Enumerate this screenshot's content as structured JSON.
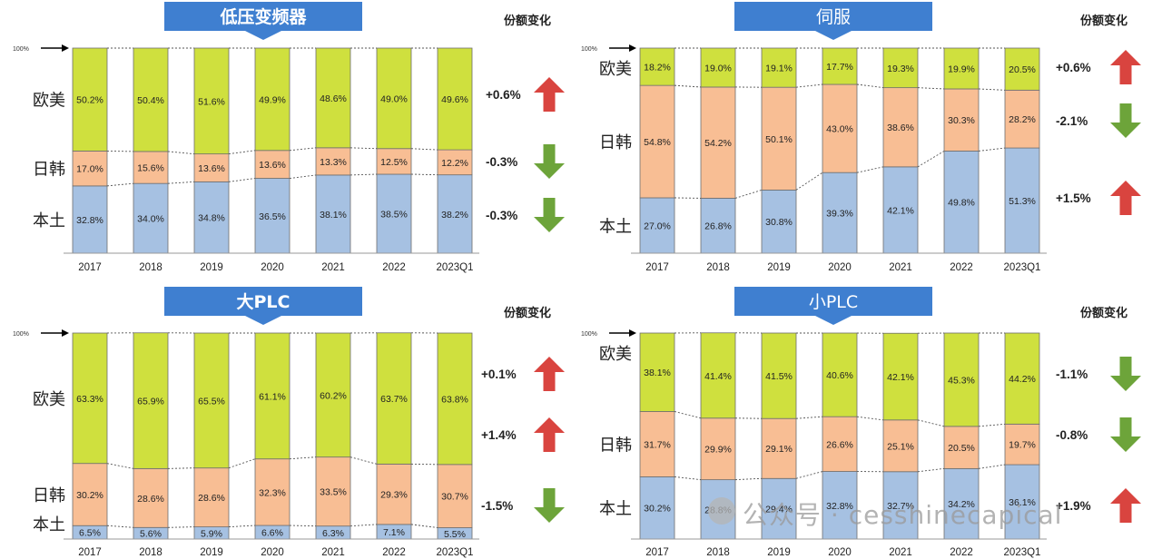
{
  "chart_data": [
    {
      "type": "bar",
      "title": "低压变频器",
      "categories": [
        "2017",
        "2018",
        "2019",
        "2020",
        "2021",
        "2022",
        "2023Q1"
      ],
      "series": [
        {
          "name": "本土",
          "values": [
            32.8,
            34.0,
            34.8,
            36.5,
            38.1,
            38.5,
            38.2
          ],
          "labels": [
            "32.8%",
            "34.0%",
            "34.8%",
            "36.5%",
            "38.1%",
            "38.5%",
            "38.2%"
          ]
        },
        {
          "name": "日韩",
          "values": [
            17.0,
            15.6,
            13.6,
            13.6,
            13.3,
            12.5,
            12.2
          ],
          "labels": [
            "17.0%",
            "15.6%",
            "13.6%",
            "13.6%",
            "13.3%",
            "12.5%",
            "12.2%"
          ]
        },
        {
          "name": "欧美",
          "values": [
            50.2,
            50.4,
            51.6,
            49.9,
            48.6,
            49.0,
            49.6
          ],
          "labels": [
            "50.2%",
            "50.4%",
            "51.6%",
            "49.9%",
            "48.6%",
            "49.0%",
            "49.6%"
          ]
        }
      ],
      "pointer_label": "100%",
      "share_change_header": "份额变化",
      "changes": [
        {
          "series": "欧美",
          "text": "+0.6%",
          "direction": "up"
        },
        {
          "series": "日韩",
          "text": "-0.3%",
          "direction": "down"
        },
        {
          "series": "本土",
          "text": "-0.3%",
          "direction": "down"
        }
      ],
      "stacked": true,
      "ylim": [
        0,
        100
      ]
    },
    {
      "type": "bar",
      "title": "伺服",
      "categories": [
        "2017",
        "2018",
        "2019",
        "2020",
        "2021",
        "2022",
        "2023Q1"
      ],
      "series": [
        {
          "name": "本土",
          "values": [
            27.0,
            26.8,
            30.8,
            39.3,
            42.1,
            49.8,
            51.3
          ],
          "labels": [
            "27.0%",
            "26.8%",
            "30.8%",
            "39.3%",
            "42.1%",
            "49.8%",
            "51.3%"
          ]
        },
        {
          "name": "日韩",
          "values": [
            54.8,
            54.2,
            50.1,
            43.0,
            38.6,
            30.3,
            28.2
          ],
          "labels": [
            "54.8%",
            "54.2%",
            "50.1%",
            "43.0%",
            "38.6%",
            "30.3%",
            "28.2%"
          ]
        },
        {
          "name": "欧美",
          "values": [
            18.2,
            19.0,
            19.1,
            17.7,
            19.3,
            19.9,
            20.5
          ],
          "labels": [
            "18.2%",
            "19.0%",
            "19.1%",
            "17.7%",
            "19.3%",
            "19.9%",
            "20.5%"
          ]
        }
      ],
      "pointer_label": "100%",
      "share_change_header": "份额变化",
      "changes": [
        {
          "series": "欧美",
          "text": "+0.6%",
          "direction": "up"
        },
        {
          "series": "日韩",
          "text": "-2.1%",
          "direction": "down"
        },
        {
          "series": "本土",
          "text": "+1.5%",
          "direction": "up"
        }
      ],
      "stacked": true,
      "ylim": [
        0,
        100
      ]
    },
    {
      "type": "bar",
      "title": "大PLC",
      "categories": [
        "2017",
        "2018",
        "2019",
        "2020",
        "2021",
        "2022",
        "2023Q1"
      ],
      "series": [
        {
          "name": "本土",
          "values": [
            6.5,
            5.6,
            5.9,
            6.6,
            6.3,
            7.1,
            5.5
          ],
          "labels": [
            "6.5%",
            "5.6%",
            "5.9%",
            "6.6%",
            "6.3%",
            "7.1%",
            "5.5%"
          ]
        },
        {
          "name": "日韩",
          "values": [
            30.2,
            28.6,
            28.6,
            32.3,
            33.5,
            29.3,
            30.7
          ],
          "labels": [
            "30.2%",
            "28.6%",
            "28.6%",
            "32.3%",
            "33.5%",
            "29.3%",
            "30.7%"
          ]
        },
        {
          "name": "欧美",
          "values": [
            63.3,
            65.9,
            65.5,
            61.1,
            60.2,
            63.7,
            63.8
          ],
          "labels": [
            "63.3%",
            "65.9%",
            "65.5%",
            "61.1%",
            "60.2%",
            "63.7%",
            "63.8%"
          ]
        }
      ],
      "pointer_label": "100%",
      "share_change_header": "份额变化",
      "changes": [
        {
          "series": "欧美",
          "text": "+0.1%",
          "direction": "up"
        },
        {
          "series": "日韩",
          "text": "+1.4%",
          "direction": "up"
        },
        {
          "series": "本土",
          "text": "-1.5%",
          "direction": "down"
        }
      ],
      "stacked": true,
      "ylim": [
        0,
        100
      ]
    },
    {
      "type": "bar",
      "title": "小PLC",
      "categories": [
        "2017",
        "2018",
        "2019",
        "2020",
        "2021",
        "2022",
        "2023Q1"
      ],
      "series": [
        {
          "name": "本土",
          "values": [
            30.2,
            28.8,
            29.4,
            32.8,
            32.7,
            34.2,
            36.1
          ],
          "labels": [
            "30.2%",
            "28.8%",
            "29.4%",
            "32.8%",
            "32.7%",
            "34.2%",
            "36.1%"
          ]
        },
        {
          "name": "日韩",
          "values": [
            31.7,
            29.9,
            29.1,
            26.6,
            25.1,
            20.5,
            19.7
          ],
          "labels": [
            "31.7%",
            "29.9%",
            "29.1%",
            "26.6%",
            "25.1%",
            "20.5%",
            "19.7%"
          ]
        },
        {
          "name": "欧美",
          "values": [
            38.1,
            41.4,
            41.5,
            40.6,
            42.1,
            45.3,
            44.2
          ],
          "labels": [
            "38.1%",
            "41.4%",
            "41.5%",
            "40.6%",
            "42.1%",
            "45.3%",
            "44.2%"
          ]
        }
      ],
      "pointer_label": "100%",
      "share_change_header": "份额变化",
      "changes": [
        {
          "series": "欧美",
          "text": "-1.1%",
          "direction": "down"
        },
        {
          "series": "日韩",
          "text": "-0.8%",
          "direction": "down"
        },
        {
          "series": "本土",
          "text": "+1.9%",
          "direction": "up"
        }
      ],
      "stacked": true,
      "ylim": [
        0,
        100
      ]
    }
  ],
  "colors": {
    "本土": "#a6c1e2",
    "日韩": "#f8be94",
    "欧美": "#cfe03e",
    "title_banner": "#3f7fd0",
    "arrow_up": "#d9443f",
    "arrow_down": "#6da43a"
  },
  "watermark": {
    "text": "公众号 · cesshinecapical"
  }
}
